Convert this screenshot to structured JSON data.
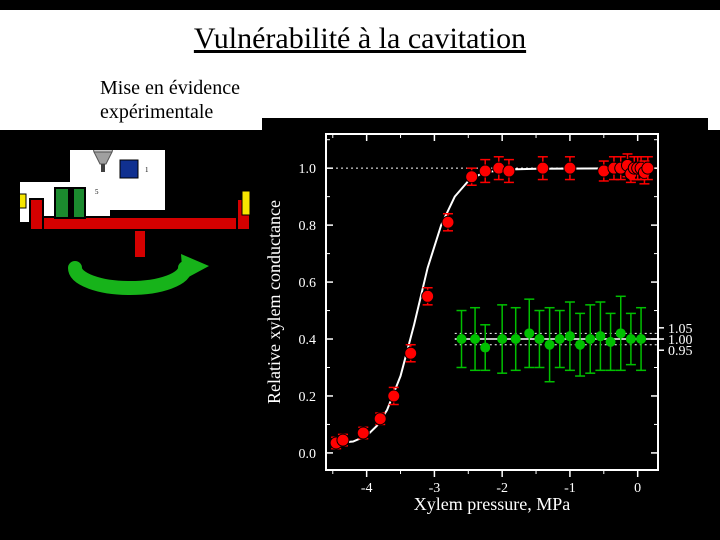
{
  "title": "Vulnérabilité  à la cavitation",
  "subtitle_line1": "Mise en évidence",
  "subtitle_line2": "expérimentale",
  "apparatus": {
    "beam_color": "#d40000",
    "beam_outline": "#000000",
    "sample_fill": "#1b8a2e",
    "sample_outline": "#000000",
    "stopper_yellow": "#f7e600",
    "motor_body": "#808080",
    "motor_detail": "#c0c0c0",
    "arrow_color": "#17b31a",
    "white_bg": "#ffffff"
  },
  "chart": {
    "type": "scatter-line",
    "background_color": "#000000",
    "axis_color": "#ffffff",
    "axis_line_width": 2,
    "xlabel": "Xylem pressure, MPa",
    "ylabel": "Relative xylem conductance",
    "label_color": "#ffffff",
    "label_fontsize": 18,
    "tick_fontsize": 14,
    "tick_color": "#ffffff",
    "xlim": [
      -4.6,
      0.3
    ],
    "ylim": [
      -0.06,
      1.12
    ],
    "xticks": [
      -4,
      -3,
      -2,
      -1,
      0
    ],
    "yticks": [
      0.0,
      0.2,
      0.4,
      0.6,
      0.8,
      1.0
    ],
    "sec_ylim": [
      0.93,
      1.07
    ],
    "sec_yticks": [
      0.95,
      1.0,
      1.05
    ],
    "hline_y": 1.0,
    "hline_color": "#ffffff",
    "hline_dash": "2,3",
    "hline_width": 1,
    "curve_color": "#ffffff",
    "curve_width": 2,
    "curve_points": [
      [
        -4.45,
        0.035
      ],
      [
        -4.2,
        0.04
      ],
      [
        -4.0,
        0.06
      ],
      [
        -3.85,
        0.095
      ],
      [
        -3.7,
        0.15
      ],
      [
        -3.5,
        0.27
      ],
      [
        -3.3,
        0.45
      ],
      [
        -3.1,
        0.65
      ],
      [
        -2.9,
        0.8
      ],
      [
        -2.7,
        0.9
      ],
      [
        -2.5,
        0.955
      ],
      [
        -2.3,
        0.982
      ],
      [
        -2.0,
        0.995
      ],
      [
        -1.5,
        0.998
      ],
      [
        0.2,
        1.0
      ]
    ],
    "red_series": {
      "marker_color": "#ff0000",
      "marker_outline": "#000000",
      "marker_radius": 6,
      "error_color": "#ff0000",
      "error_width": 1.5,
      "cap_width": 5,
      "points": [
        {
          "x": -4.45,
          "y": 0.035,
          "err": 0.02
        },
        {
          "x": -4.35,
          "y": 0.045,
          "err": 0.02
        },
        {
          "x": -4.05,
          "y": 0.07,
          "err": 0.02
        },
        {
          "x": -3.8,
          "y": 0.12,
          "err": 0.02
        },
        {
          "x": -3.6,
          "y": 0.2,
          "err": 0.03
        },
        {
          "x": -3.35,
          "y": 0.35,
          "err": 0.03
        },
        {
          "x": -3.1,
          "y": 0.55,
          "err": 0.03
        },
        {
          "x": -2.8,
          "y": 0.81,
          "err": 0.03
        },
        {
          "x": -2.45,
          "y": 0.97,
          "err": 0.03
        },
        {
          "x": -2.25,
          "y": 0.99,
          "err": 0.04
        },
        {
          "x": -2.05,
          "y": 1.0,
          "err": 0.04
        },
        {
          "x": -1.9,
          "y": 0.99,
          "err": 0.04
        },
        {
          "x": -1.4,
          "y": 1.0,
          "err": 0.04
        },
        {
          "x": -1.0,
          "y": 1.0,
          "err": 0.04
        },
        {
          "x": -0.5,
          "y": 0.99,
          "err": 0.035
        },
        {
          "x": -0.35,
          "y": 1.0,
          "err": 0.04
        },
        {
          "x": -0.25,
          "y": 1.0,
          "err": 0.04
        },
        {
          "x": -0.15,
          "y": 1.01,
          "err": 0.04
        },
        {
          "x": -0.1,
          "y": 0.98,
          "err": 0.03
        },
        {
          "x": -0.05,
          "y": 1.0,
          "err": 0.04
        },
        {
          "x": 0.0,
          "y": 1.0,
          "err": 0.04
        },
        {
          "x": 0.05,
          "y": 1.0,
          "err": 0.04
        },
        {
          "x": 0.1,
          "y": 0.985,
          "err": 0.04
        },
        {
          "x": 0.15,
          "y": 1.0,
          "err": 0.04
        }
      ]
    },
    "green_series": {
      "marker_color": "#00c000",
      "error_color": "#00c000",
      "marker_radius": 5,
      "error_width": 1.5,
      "cap_width": 5,
      "baseline_y": 0.4,
      "secondary_dotted_y": [
        0.38,
        0.42
      ],
      "points": [
        {
          "x": -2.6,
          "y": 0.4,
          "err": 0.1
        },
        {
          "x": -2.4,
          "y": 0.4,
          "err": 0.11
        },
        {
          "x": -2.25,
          "y": 0.37,
          "err": 0.08
        },
        {
          "x": -2.0,
          "y": 0.4,
          "err": 0.12
        },
        {
          "x": -1.8,
          "y": 0.4,
          "err": 0.11
        },
        {
          "x": -1.6,
          "y": 0.42,
          "err": 0.12
        },
        {
          "x": -1.45,
          "y": 0.4,
          "err": 0.1
        },
        {
          "x": -1.3,
          "y": 0.38,
          "err": 0.13
        },
        {
          "x": -1.15,
          "y": 0.4,
          "err": 0.1
        },
        {
          "x": -1.0,
          "y": 0.41,
          "err": 0.12
        },
        {
          "x": -0.85,
          "y": 0.38,
          "err": 0.11
        },
        {
          "x": -0.7,
          "y": 0.4,
          "err": 0.12
        },
        {
          "x": -0.55,
          "y": 0.41,
          "err": 0.12
        },
        {
          "x": -0.4,
          "y": 0.39,
          "err": 0.1
        },
        {
          "x": -0.25,
          "y": 0.42,
          "err": 0.13
        },
        {
          "x": -0.1,
          "y": 0.4,
          "err": 0.09
        },
        {
          "x": 0.05,
          "y": 0.4,
          "err": 0.11
        }
      ]
    }
  }
}
